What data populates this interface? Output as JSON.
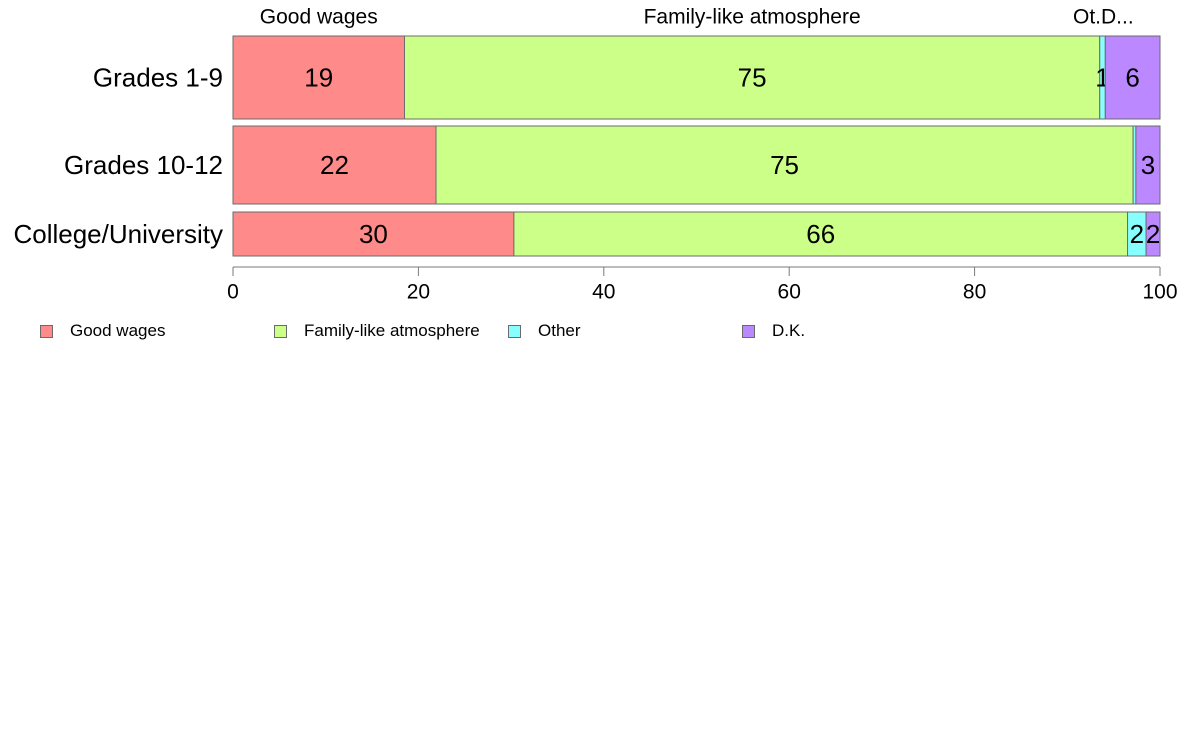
{
  "chart_data": {
    "type": "bar",
    "orientation": "horizontal",
    "stacked": true,
    "categories": [
      "Grades 1-9",
      "Grades 10-12",
      "College/University"
    ],
    "series": [
      {
        "name": "Good wages",
        "color": "#ff8a8a",
        "values": [
          18.5,
          21.9,
          30.3
        ],
        "labels": [
          "19",
          "22",
          "30"
        ]
      },
      {
        "name": "Family-like atmosphere",
        "color": "#ccff88",
        "values": [
          75.0,
          75.2,
          66.2
        ],
        "labels": [
          "75",
          "75",
          "66"
        ]
      },
      {
        "name": "Other",
        "color": "#88ffff",
        "values": [
          0.6,
          0.3,
          2.0
        ],
        "labels": [
          "1",
          "",
          "2"
        ]
      },
      {
        "name": "D.K.",
        "color": "#bb88ff",
        "values": [
          5.9,
          2.6,
          1.5
        ],
        "labels": [
          "6",
          "3",
          "2"
        ]
      }
    ],
    "top_labels": [
      "Good wages",
      "Family-like atmosphere",
      "Ot.",
      "D..."
    ],
    "x_ticks": [
      "0",
      "20",
      "40",
      "60",
      "80",
      "100"
    ],
    "xlim": [
      0,
      100
    ],
    "grid": false,
    "legend_position": "bottom"
  }
}
